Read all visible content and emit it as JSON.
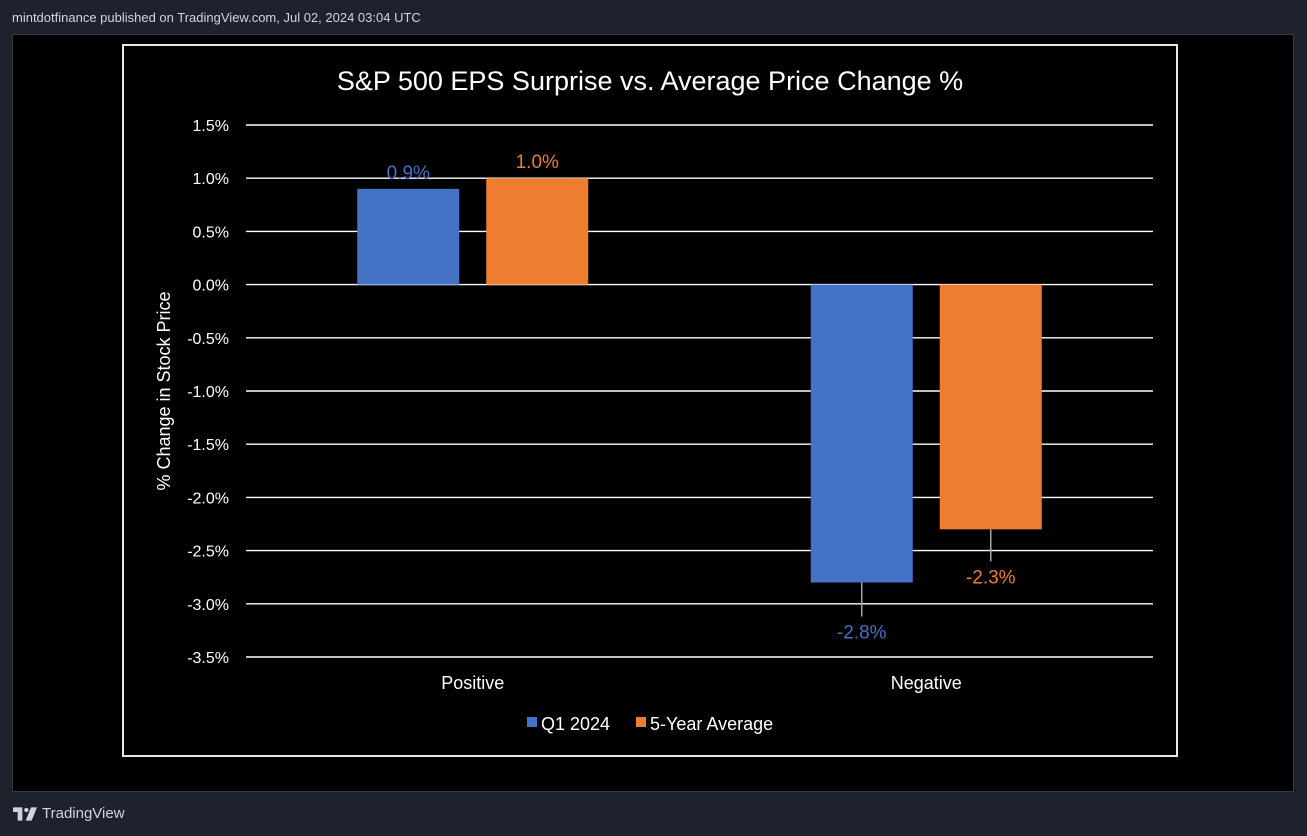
{
  "header": {
    "caption": "mintdotfinance published on TradingView.com, Jul 02, 2024 03:04 UTC"
  },
  "footer": {
    "brand": "TradingView"
  },
  "colors": {
    "q1": "#4472c4",
    "avg": "#ed7d31",
    "grid": "#ffffff",
    "text": "#ffffff"
  },
  "chart_data": {
    "type": "bar",
    "title": "S&P 500 EPS Surprise vs. Average Price Change %",
    "ylabel": "% Change in Stock Price",
    "xlabel": "",
    "categories": [
      "Positive",
      "Negative"
    ],
    "series": [
      {
        "name": "Q1 2024",
        "values": [
          0.9,
          -2.8
        ],
        "labels": [
          "0.9%",
          "-2.8%"
        ]
      },
      {
        "name": "5-Year Average",
        "values": [
          1.0,
          -2.3
        ],
        "labels": [
          "1.0%",
          "-2.3%"
        ]
      }
    ],
    "ylim": [
      -3.5,
      1.5
    ],
    "yticks": [
      1.5,
      1.0,
      0.5,
      0.0,
      -0.5,
      -1.0,
      -1.5,
      -2.0,
      -2.5,
      -3.0,
      -3.5
    ],
    "ytick_labels": [
      "1.5%",
      "1.0%",
      "0.5%",
      "0.0%",
      "-0.5%",
      "-1.0%",
      "-1.5%",
      "-2.0%",
      "-2.5%",
      "-3.0%",
      "-3.5%"
    ],
    "grid": true,
    "legend": "bottom-center"
  }
}
